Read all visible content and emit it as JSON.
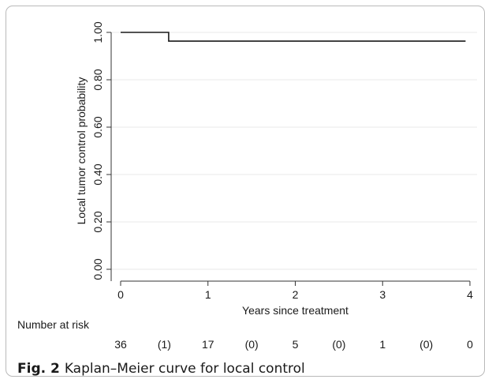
{
  "chart_data": {
    "type": "line",
    "title": "",
    "xlabel": "Years since treatment",
    "ylabel": "Local tumor control probability",
    "xlim": [
      0,
      4
    ],
    "ylim": [
      0,
      1
    ],
    "x_ticks": [
      "0",
      "1",
      "2",
      "3",
      "4"
    ],
    "y_ticks": [
      "0.00",
      "0.20",
      "0.40",
      "0.60",
      "0.80",
      "1.00"
    ],
    "grid": true,
    "step": true,
    "series": [
      {
        "x": [
          0,
          0.55,
          3.95
        ],
        "y": [
          1.0,
          0.963,
          0.963
        ]
      }
    ],
    "risk_table": {
      "label": "Number at risk",
      "values": [
        "36",
        "(1)",
        "17",
        "(0)",
        "5",
        "(0)",
        "1",
        "(0)",
        "0"
      ]
    }
  },
  "caption": {
    "label": "Fig. 2",
    "text": "Kaplan–Meier curve for local control"
  }
}
